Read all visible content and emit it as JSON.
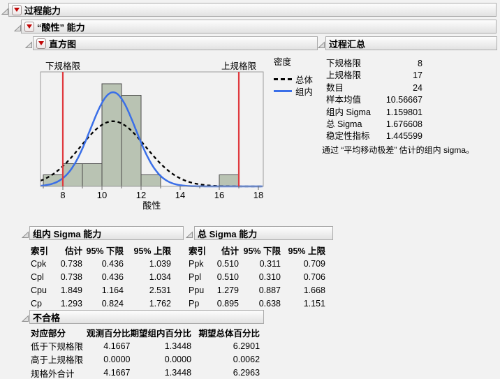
{
  "outline": {
    "process_capability": {
      "title": "过程能力"
    },
    "variable_capability": {
      "title": "“酸性” 能力"
    },
    "histogram": {
      "title": "直方图"
    },
    "process_summary": {
      "title": "过程汇总"
    },
    "within_capability": {
      "title": "组内 Sigma 能力"
    },
    "overall_capability": {
      "title": "总 Sigma 能力"
    },
    "nonconformance": {
      "title": "不合格"
    }
  },
  "histogram": {
    "lsl_label": "下规格限",
    "usl_label": "上规格限",
    "legend": {
      "title": "密度",
      "items": [
        {
          "label": "总体",
          "style": "dashed",
          "color": "#000000"
        },
        {
          "label": "组内",
          "style": "solid",
          "color": "#3A6FE8"
        }
      ]
    }
  },
  "chart_data": {
    "type": "histogram",
    "x_label": "酸性",
    "x_ticks": [
      8,
      10,
      12,
      14,
      16,
      18
    ],
    "x_minor_ticks": [
      7,
      9,
      11,
      13,
      15,
      17
    ],
    "x_range": [
      6.85,
      18.25
    ],
    "n": 24,
    "bin_width": 1,
    "bins": [
      {
        "x0": 7,
        "count": 1
      },
      {
        "x0": 8,
        "count": 2
      },
      {
        "x0": 9,
        "count": 2
      },
      {
        "x0": 10,
        "count": 9
      },
      {
        "x0": 11,
        "count": 8
      },
      {
        "x0": 12,
        "count": 1
      },
      {
        "x0": 16,
        "count": 1
      }
    ],
    "spec_limits": {
      "lsl": 8,
      "usl": 17
    },
    "curves": [
      {
        "name": "总体",
        "mean": 10.56667,
        "sigma": 1.676608,
        "style": "dashed",
        "color": "#000000"
      },
      {
        "name": "组内",
        "mean": 10.56667,
        "sigma": 1.159801,
        "style": "solid",
        "color": "#3A6FE8"
      }
    ],
    "bar_fill": "#B9C3B3",
    "bar_stroke": "#4A4A4A",
    "spec_color": "#E03A3F"
  },
  "process_summary": {
    "rows": [
      [
        "下规格限",
        "8"
      ],
      [
        "上规格限",
        "17"
      ],
      [
        "数目",
        "24"
      ],
      [
        "样本均值",
        "10.56667"
      ],
      [
        "组内 Sigma",
        "1.159801"
      ],
      [
        "总 Sigma",
        "1.676608"
      ],
      [
        "稳定性指标",
        "1.445599"
      ]
    ],
    "footnote": "通过 “平均移动极差” 估计的组内 sigma。"
  },
  "within_capability": {
    "columns": [
      "索引",
      "估计",
      "95% 下限",
      "95% 上限"
    ],
    "rows": [
      [
        "Cpk",
        "0.738",
        "0.436",
        "1.039"
      ],
      [
        "Cpl",
        "0.738",
        "0.436",
        "1.034"
      ],
      [
        "Cpu",
        "1.849",
        "1.164",
        "2.531"
      ],
      [
        "Cp",
        "1.293",
        "0.824",
        "1.762"
      ]
    ]
  },
  "overall_capability": {
    "columns": [
      "索引",
      "估计",
      "95% 下限",
      "95% 上限"
    ],
    "rows": [
      [
        "Ppk",
        "0.510",
        "0.311",
        "0.709"
      ],
      [
        "Ppl",
        "0.510",
        "0.310",
        "0.706"
      ],
      [
        "Ppu",
        "1.279",
        "0.887",
        "1.668"
      ],
      [
        "Pp",
        "0.895",
        "0.638",
        "1.151"
      ]
    ]
  },
  "nonconformance": {
    "columns": [
      "对应部分",
      "观测百分比",
      "期望组内百分比",
      "期望总体百分比"
    ],
    "rows": [
      [
        "低于下规格限",
        "4.1667",
        "1.3448",
        "6.2901"
      ],
      [
        "高于上规格限",
        "0.0000",
        "0.0000",
        "0.0062"
      ],
      [
        "规格外合计",
        "4.1667",
        "1.3448",
        "6.2963"
      ]
    ]
  }
}
